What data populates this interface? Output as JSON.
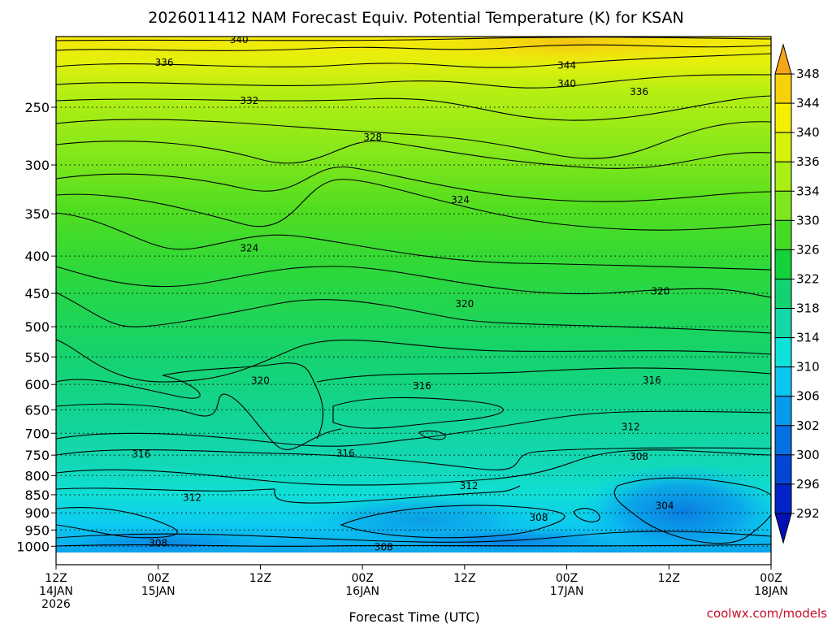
{
  "chart_data": {
    "type": "heatmap",
    "title": "2026011412 NAM Forecast Equiv. Potential Temperature (K) for KSAN",
    "xlabel": "Forecast Time (UTC)",
    "ylabel": "",
    "credit": "coolwx.com/models",
    "x_ticks": [
      {
        "hours": 0,
        "lines": [
          "12Z",
          "14JAN",
          "2026"
        ]
      },
      {
        "hours": 12,
        "lines": [
          "00Z",
          "15JAN"
        ]
      },
      {
        "hours": 24,
        "lines": [
          "12Z"
        ]
      },
      {
        "hours": 36,
        "lines": [
          "00Z",
          "16JAN"
        ]
      },
      {
        "hours": 48,
        "lines": [
          "12Z"
        ]
      },
      {
        "hours": 60,
        "lines": [
          "00Z",
          "17JAN"
        ]
      },
      {
        "hours": 72,
        "lines": [
          "12Z"
        ]
      },
      {
        "hours": 84,
        "lines": [
          "00Z",
          "18JAN"
        ]
      }
    ],
    "x_range_hours": [
      0,
      84
    ],
    "y_ticks": [
      250,
      300,
      350,
      400,
      450,
      500,
      550,
      600,
      650,
      700,
      750,
      800,
      850,
      900,
      950,
      1000
    ],
    "y_range_mb": [
      200,
      1020
    ],
    "y_scale": "log-pressure (reversed)",
    "grid": "dotted pressure lines",
    "colorbar": {
      "labels": [
        348,
        344,
        340,
        336,
        334,
        330,
        326,
        322,
        318,
        314,
        310,
        306,
        302,
        300,
        296,
        292
      ],
      "colors": [
        "#f6a518",
        "#f5d20a",
        "#f5f000",
        "#d4f20a",
        "#a9ef14",
        "#7ee81c",
        "#44dc22",
        "#13d23a",
        "#12d371",
        "#13d8a8",
        "#0fe2da",
        "#0ac7f2",
        "#079bee",
        "#0570e2",
        "#0446d4",
        "#0322c8",
        "#0210b8"
      ]
    },
    "contour_labels": [
      {
        "value": "340",
        "hours": 21.5,
        "mb": 202
      },
      {
        "value": "336",
        "hours": 12.7,
        "mb": 217
      },
      {
        "value": "344",
        "hours": 60.0,
        "mb": 219
      },
      {
        "value": "340",
        "hours": 60.0,
        "mb": 232
      },
      {
        "value": "336",
        "hours": 68.5,
        "mb": 238
      },
      {
        "value": "332",
        "hours": 22.7,
        "mb": 245
      },
      {
        "value": "328",
        "hours": 37.2,
        "mb": 275
      },
      {
        "value": "324",
        "hours": 47.5,
        "mb": 335
      },
      {
        "value": "324",
        "hours": 22.7,
        "mb": 390
      },
      {
        "value": "320",
        "hours": 48.0,
        "mb": 465
      },
      {
        "value": "320",
        "hours": 71.0,
        "mb": 447
      },
      {
        "value": "320",
        "hours": 24.0,
        "mb": 593
      },
      {
        "value": "316",
        "hours": 43.0,
        "mb": 603
      },
      {
        "value": "316",
        "hours": 70.0,
        "mb": 592
      },
      {
        "value": "312",
        "hours": 67.5,
        "mb": 686
      },
      {
        "value": "316",
        "hours": 10.0,
        "mb": 748
      },
      {
        "value": "316",
        "hours": 34.0,
        "mb": 746
      },
      {
        "value": "308",
        "hours": 68.5,
        "mb": 754
      },
      {
        "value": "312",
        "hours": 48.5,
        "mb": 827
      },
      {
        "value": "312",
        "hours": 16.0,
        "mb": 858
      },
      {
        "value": "304",
        "hours": 71.5,
        "mb": 880
      },
      {
        "value": "308",
        "hours": 56.7,
        "mb": 913
      },
      {
        "value": "308",
        "hours": 12.0,
        "mb": 990
      },
      {
        "value": "308",
        "hours": 38.5,
        "mb": 1003
      }
    ]
  }
}
